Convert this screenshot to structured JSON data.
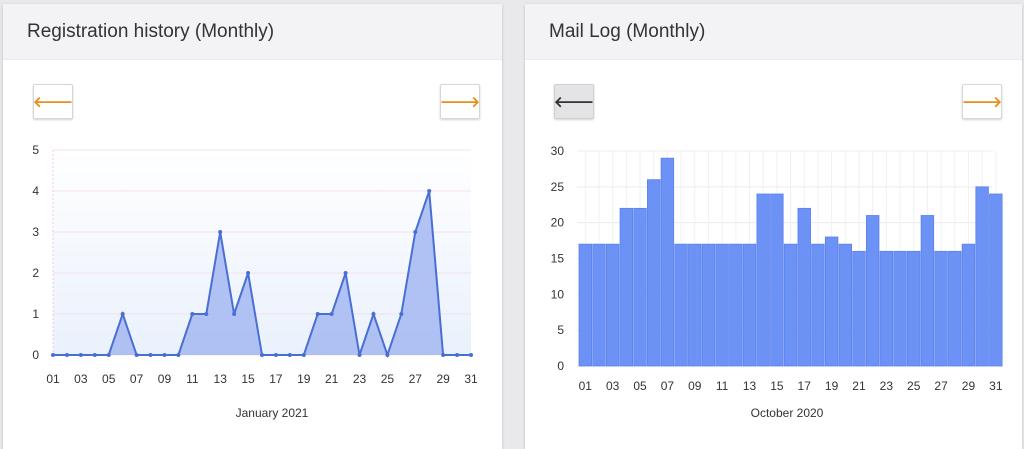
{
  "panels": {
    "registration": {
      "title": "Registration history (Monthly)",
      "prev_icon": "arrow-left-icon",
      "next_icon": "arrow-right-icon",
      "prev_glyph": "🡐",
      "next_glyph": "🡒"
    },
    "mail": {
      "title": "Mail Log (Monthly)",
      "prev_icon": "arrow-left-icon",
      "next_icon": "arrow-right-icon",
      "prev_glyph": "🡐",
      "next_glyph": "🡒"
    }
  },
  "colors": {
    "accent_arrow": "#e8901a",
    "line_stroke": "#4a6fd4",
    "area_fill": "#a9bbf2",
    "bar_fill": "#6d92f5",
    "bar_stroke": "#5a80ee"
  },
  "chart_data": [
    {
      "type": "area",
      "xlabel": "January 2021",
      "ylim": [
        0,
        5
      ],
      "yticks": [
        0,
        1,
        2,
        3,
        4,
        5
      ],
      "x": [
        "01",
        "02",
        "03",
        "04",
        "05",
        "06",
        "07",
        "08",
        "09",
        "10",
        "11",
        "12",
        "13",
        "14",
        "15",
        "16",
        "17",
        "18",
        "19",
        "20",
        "21",
        "22",
        "23",
        "24",
        "25",
        "26",
        "27",
        "28",
        "29",
        "30",
        "31"
      ],
      "xtick_labels": [
        "01",
        "03",
        "05",
        "07",
        "09",
        "11",
        "13",
        "15",
        "17",
        "19",
        "21",
        "23",
        "25",
        "27",
        "29",
        "31"
      ],
      "values": [
        0,
        0,
        0,
        0,
        0,
        1,
        0,
        0,
        0,
        0,
        1,
        1,
        3,
        1,
        2,
        0,
        0,
        0,
        0,
        1,
        1,
        2,
        0,
        1,
        0,
        1,
        3,
        4,
        0,
        0,
        0
      ]
    },
    {
      "type": "bar",
      "xlabel": "October 2020",
      "ylim": [
        0,
        30
      ],
      "yticks": [
        0,
        5,
        10,
        15,
        20,
        25,
        30
      ],
      "x": [
        "01",
        "02",
        "03",
        "04",
        "05",
        "06",
        "07",
        "08",
        "09",
        "10",
        "11",
        "12",
        "13",
        "14",
        "15",
        "16",
        "17",
        "18",
        "19",
        "20",
        "21",
        "22",
        "23",
        "24",
        "25",
        "26",
        "27",
        "28",
        "29",
        "30",
        "31"
      ],
      "xtick_labels": [
        "01",
        "03",
        "05",
        "07",
        "09",
        "11",
        "13",
        "15",
        "17",
        "19",
        "21",
        "23",
        "25",
        "27",
        "29",
        "31"
      ],
      "values": [
        17,
        17,
        17,
        22,
        22,
        26,
        29,
        17,
        17,
        17,
        17,
        17,
        17,
        24,
        24,
        17,
        22,
        17,
        18,
        17,
        16,
        21,
        16,
        16,
        16,
        21,
        16,
        16,
        17,
        25,
        24
      ]
    }
  ]
}
